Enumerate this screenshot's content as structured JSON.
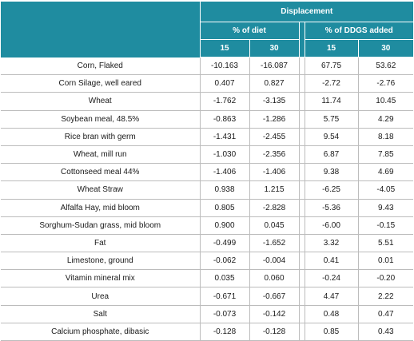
{
  "table": {
    "header": {
      "group": "Displacement",
      "sub_diet": "% of diet",
      "sub_ddgs": "% of DDGS added",
      "cols": [
        "15",
        "30",
        "15",
        "30"
      ]
    },
    "rows": [
      {
        "ingredient": "Corn, Flaked",
        "diet15": "-10.163",
        "diet30": "-16.087",
        "ddgs15": "67.75",
        "ddgs30": "53.62"
      },
      {
        "ingredient": "Corn Silage, well eared",
        "diet15": "0.407",
        "diet30": "0.827",
        "ddgs15": "-2.72",
        "ddgs30": "-2.76"
      },
      {
        "ingredient": "Wheat",
        "diet15": "-1.762",
        "diet30": "-3.135",
        "ddgs15": "11.74",
        "ddgs30": "10.45"
      },
      {
        "ingredient": "Soybean meal,  48.5%",
        "diet15": "-0.863",
        "diet30": "-1.286",
        "ddgs15": "5.75",
        "ddgs30": "4.29"
      },
      {
        "ingredient": "Rice bran with germ",
        "diet15": "-1.431",
        "diet30": "-2.455",
        "ddgs15": "9.54",
        "ddgs30": "8.18"
      },
      {
        "ingredient": "Wheat, mill run",
        "diet15": "-1.030",
        "diet30": "-2.356",
        "ddgs15": "6.87",
        "ddgs30": "7.85"
      },
      {
        "ingredient": "Cottonseed meal 44%",
        "diet15": "-1.406",
        "diet30": "-1.406",
        "ddgs15": "9.38",
        "ddgs30": "4.69"
      },
      {
        "ingredient": "Wheat Straw",
        "diet15": "0.938",
        "diet30": "1.215",
        "ddgs15": "-6.25",
        "ddgs30": "-4.05"
      },
      {
        "ingredient": "Alfalfa Hay, mid bloom",
        "diet15": "0.805",
        "diet30": "-2.828",
        "ddgs15": "-5.36",
        "ddgs30": "9.43"
      },
      {
        "ingredient": "Sorghum-Sudan grass, mid bloom",
        "diet15": "0.900",
        "diet30": "0.045",
        "ddgs15": "-6.00",
        "ddgs30": "-0.15"
      },
      {
        "ingredient": "Fat",
        "diet15": "-0.499",
        "diet30": "-1.652",
        "ddgs15": "3.32",
        "ddgs30": "5.51"
      },
      {
        "ingredient": "Limestone, ground",
        "diet15": "-0.062",
        "diet30": "-0.004",
        "ddgs15": "0.41",
        "ddgs30": "0.01"
      },
      {
        "ingredient": "Vitamin mineral mix",
        "diet15": "0.035",
        "diet30": "0.060",
        "ddgs15": "-0.24",
        "ddgs30": "-0.20"
      },
      {
        "ingredient": "Urea",
        "diet15": "-0.671",
        "diet30": "-0.667",
        "ddgs15": "4.47",
        "ddgs30": "2.22"
      },
      {
        "ingredient": "Salt",
        "diet15": "-0.073",
        "diet30": "-0.142",
        "ddgs15": "0.48",
        "ddgs30": "0.47"
      },
      {
        "ingredient": "Calcium phosphate, dibasic",
        "diet15": "-0.128",
        "diet30": "-0.128",
        "ddgs15": "0.85",
        "ddgs30": "0.43"
      }
    ]
  },
  "colors": {
    "header_bg": "#1f8ca0",
    "header_text": "#ffffff",
    "grid_line": "#bcbcbc"
  }
}
